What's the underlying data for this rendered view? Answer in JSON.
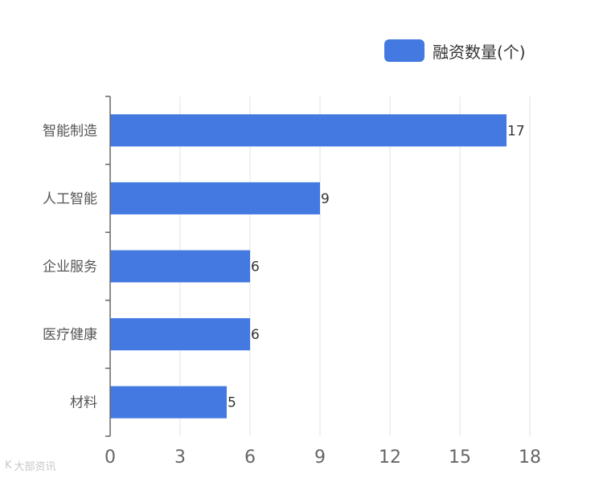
{
  "chart_data": {
    "type": "bar",
    "orientation": "horizontal",
    "categories": [
      "智能制造",
      "人工智能",
      "企业服务",
      "医疗健康",
      "材料"
    ],
    "series": [
      {
        "name": "融资数量(个)",
        "values": [
          17,
          9,
          6,
          6,
          5
        ]
      }
    ],
    "xlim": [
      0,
      18
    ],
    "xticks": [
      0,
      3,
      6,
      9,
      12,
      15,
      18
    ],
    "grid": true,
    "legend": "top-right",
    "data_labels": true,
    "colors": {
      "bar": "#4379e0",
      "grid": "#dfe3ea",
      "axis": "#666666",
      "tick_label": "#666666",
      "category_label": "#555555",
      "value_label": "#333333"
    }
  },
  "legend": {
    "label": "融资数量(个)"
  },
  "watermark": {
    "logo": "K",
    "text": "大部资讯"
  }
}
